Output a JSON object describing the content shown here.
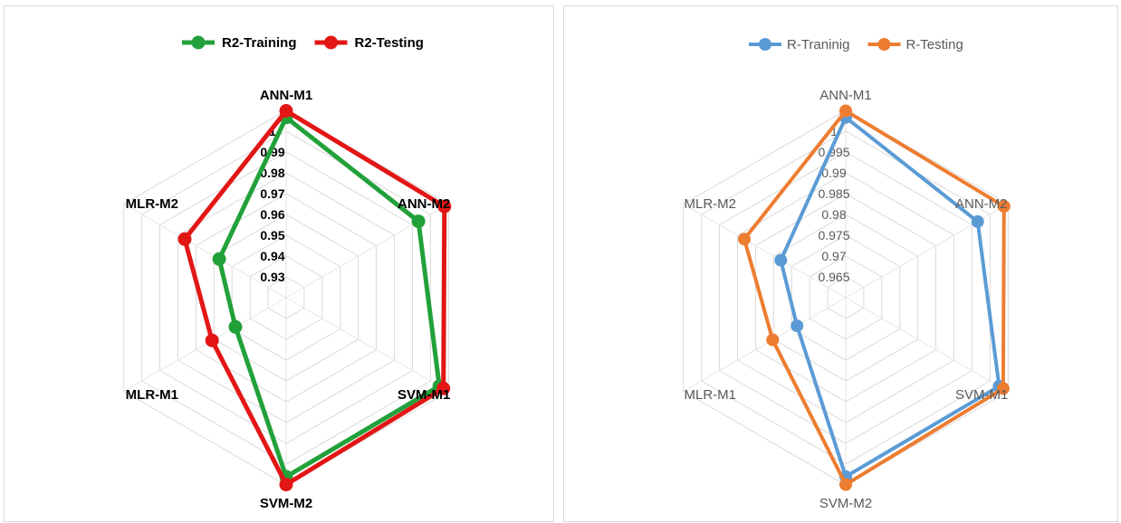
{
  "chart_data": [
    {
      "type": "radar",
      "title": "",
      "categories": [
        "ANN-M1",
        "ANN-M2",
        "SVM-M1",
        "SVM-M2",
        "MLR-M1",
        "MLR-M2"
      ],
      "ticks": [
        "0.93",
        "0.94",
        "0.95",
        "0.96",
        "0.97",
        "0.98",
        "0.99",
        "1"
      ],
      "rlim": [
        0.92,
        1.0
      ],
      "grid": true,
      "legend_position": "top",
      "series": [
        {
          "name": "R2-Training",
          "color": "#22a13a",
          "values": [
            0.997,
            0.9852,
            0.9955,
            0.9965,
            0.945,
            0.953
          ]
        },
        {
          "name": "R2-Testing",
          "color": "#e31616",
          "values": [
            0.9998,
            0.998,
            0.9975,
            0.9998,
            0.9565,
            0.97
          ]
        }
      ]
    },
    {
      "type": "radar",
      "title": "",
      "categories": [
        "ANN-M1",
        "ANN-M2",
        "SVM-M1",
        "SVM-M2",
        "MLR-M1",
        "MLR-M2"
      ],
      "ticks": [
        "0.965",
        "0.97",
        "0.975",
        "0.98",
        "0.985",
        "0.99",
        "0.995",
        "1"
      ],
      "rlim": [
        0.96,
        1.0
      ],
      "grid": true,
      "legend_position": "top",
      "series": [
        {
          "name": "R-Traninig",
          "color": "#5b9bd5",
          "values": [
            0.9985,
            0.9925,
            0.9978,
            0.9982,
            0.972,
            0.976
          ]
        },
        {
          "name": "R-Testing",
          "color": "#ed7d31",
          "values": [
            0.9999,
            0.999,
            0.9988,
            0.9999,
            0.978,
            0.985
          ]
        }
      ]
    }
  ]
}
